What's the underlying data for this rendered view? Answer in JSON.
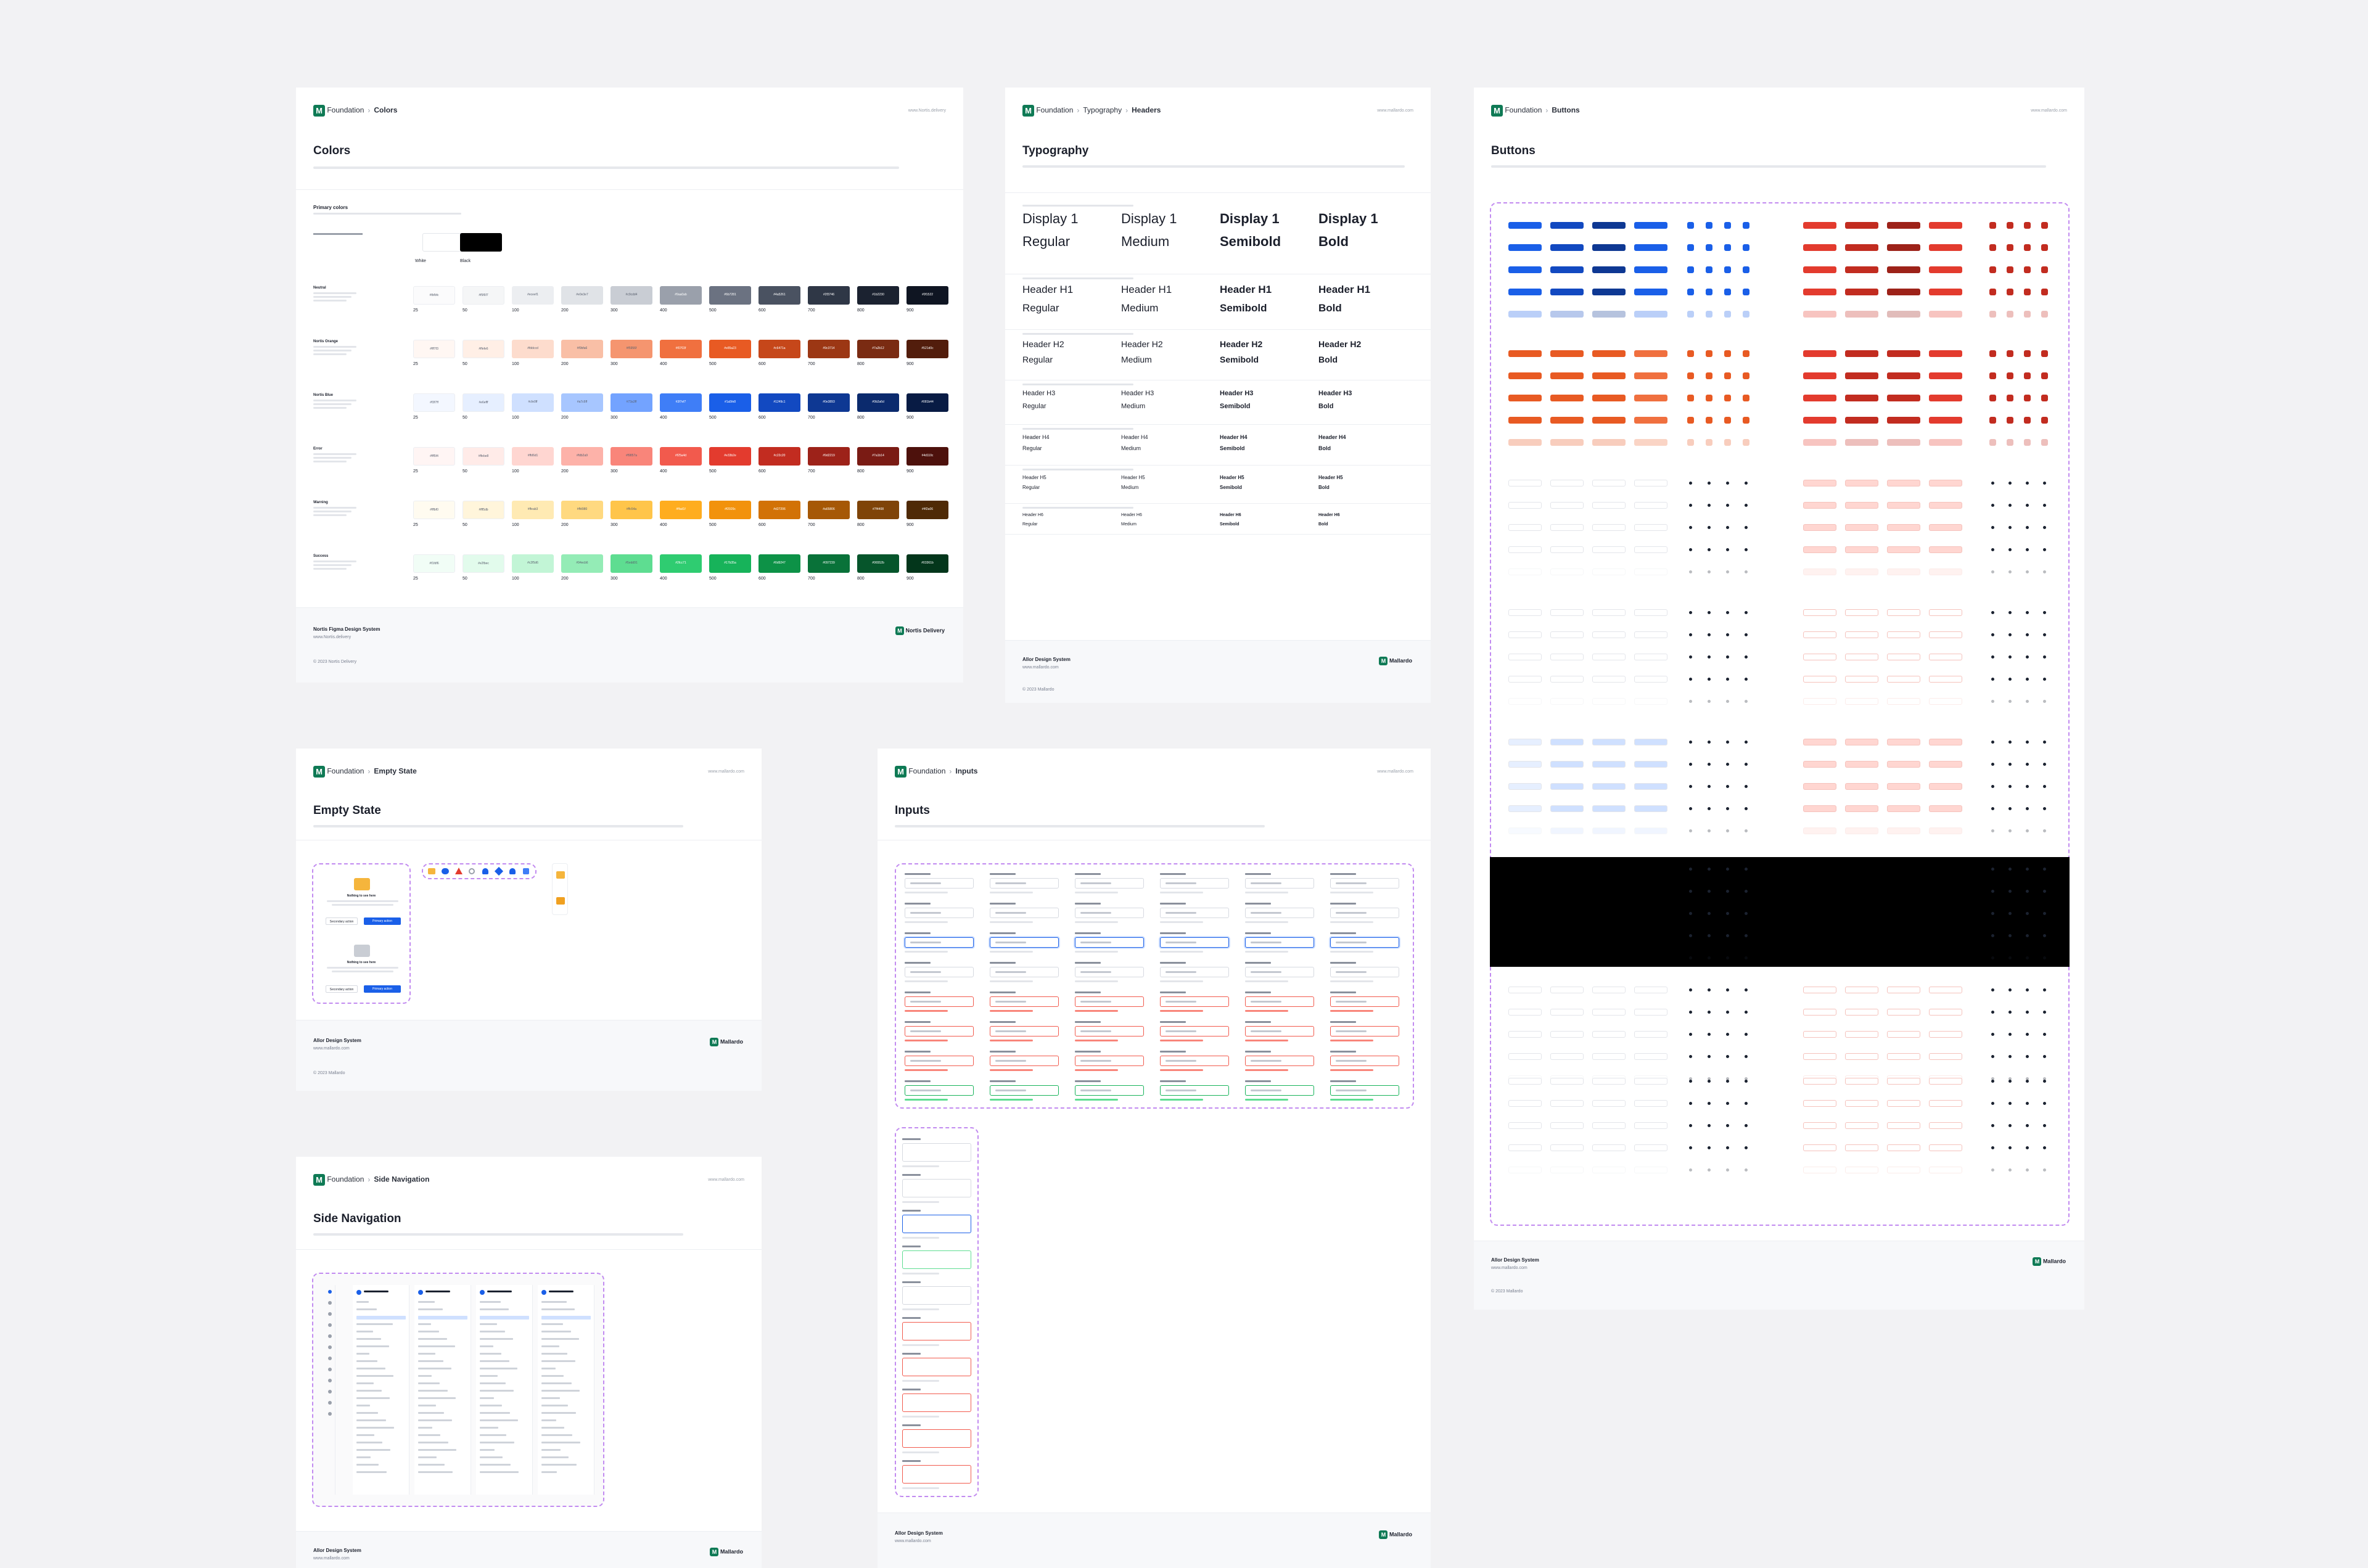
{
  "brand": {
    "logo_letter": "M",
    "accent": "#0f7a55"
  },
  "colors_page": {
    "crumb_root": "Foundation",
    "crumb_current": "Colors",
    "url": "www.Nortis.delivery",
    "title": "Colors",
    "section": "Primary colors",
    "base_swatches": [
      {
        "name": "White",
        "hex": "#FFFFFF"
      },
      {
        "name": "Black",
        "hex": "#000000"
      }
    ],
    "steps": [
      "25",
      "50",
      "100",
      "200",
      "300",
      "400",
      "500",
      "600",
      "700",
      "800",
      "900"
    ],
    "rows": [
      {
        "name": "Neutral",
        "colors": [
          "#fbfbfc",
          "#f5f6f7",
          "#eceef1",
          "#e0e3e7",
          "#c9cdd4",
          "#9aa0ab",
          "#6b7281",
          "#4a5261",
          "#2f3746",
          "#1b2230",
          "#0f1522"
        ]
      },
      {
        "name": "Nortis Orange",
        "colors": [
          "#fff7f3",
          "#ffefe6",
          "#fddccd",
          "#f9bfa6",
          "#f5956f",
          "#f0703f",
          "#e85a23",
          "#c6471a",
          "#9c3714",
          "#7a2b12",
          "#521d0c"
        ]
      },
      {
        "name": "Nortis Blue",
        "colors": [
          "#f3f7ff",
          "#e6efff",
          "#cfe0ff",
          "#a7c6ff",
          "#73a3ff",
          "#3f7ef7",
          "#1a5fe8",
          "#1249c1",
          "#0e3893",
          "#0b2a6d",
          "#081b44"
        ]
      },
      {
        "name": "Error",
        "colors": [
          "#fff5f4",
          "#ffebe8",
          "#ffd6d1",
          "#fdb2a9",
          "#f9857a",
          "#f25a4d",
          "#e33b2e",
          "#c22c20",
          "#9d2219",
          "#7a1b14",
          "#4d110c"
        ]
      },
      {
        "name": "Warning",
        "colors": [
          "#fffbf0",
          "#fff5db",
          "#ffeab3",
          "#ffd980",
          "#ffc54a",
          "#ffad1f",
          "#f2920c",
          "#d27206",
          "#a65806",
          "#7f4408",
          "#4f2a06"
        ]
      },
      {
        "name": "Success",
        "colors": [
          "#f1fdf6",
          "#e2fbec",
          "#c2f5d6",
          "#94ecb6",
          "#5edd91",
          "#2fcc71",
          "#17b35a",
          "#0d9247",
          "#097239",
          "#06552b",
          "#03361b"
        ]
      }
    ],
    "footer_title": "Nortis Figma Design System",
    "footer_sub": "www.Nortis.delivery",
    "footer_copy": "© 2023 Nortis Delivery",
    "footer_brand": "Nortis Delivery"
  },
  "typo_page": {
    "crumb_root": "Foundation",
    "crumb_mid": "Typography",
    "crumb_current": "Headers",
    "url": "www.mallardo.com",
    "title": "Typography",
    "weights": [
      "Regular",
      "Medium",
      "Semibold",
      "Bold"
    ],
    "styles": [
      "Display 1",
      "Header H1",
      "Header H2",
      "Header H3",
      "Header H4",
      "Header H5",
      "Header H6"
    ],
    "footer_title": "Allor Design System",
    "footer_sub": "www.mallardo.com",
    "footer_copy": "© 2023 Mallardo",
    "footer_brand": "Mallardo"
  },
  "buttons_page": {
    "crumb_root": "Foundation",
    "crumb_current": "Buttons",
    "url": "www.mallardo.com",
    "title": "Buttons",
    "footer_title": "Allor Design System",
    "footer_sub": "www.mallardo.com",
    "footer_copy": "© 2023 Mallardo",
    "footer_brand": "Mallardo"
  },
  "empty_page": {
    "crumb_root": "Foundation",
    "crumb_current": "Empty State",
    "url": "www.mallardo.com",
    "title": "Empty State",
    "card_title": "Nothing to see here",
    "secondary_btn": "Secondary action",
    "primary_btn": "Primary action",
    "footer_title": "Allor Design System",
    "footer_sub": "www.mallardo.com",
    "footer_copy": "© 2023 Mallardo",
    "footer_brand": "Mallardo"
  },
  "inputs_page": {
    "crumb_root": "Foundation",
    "crumb_current": "Inputs",
    "url": "www.mallardo.com",
    "title": "Inputs",
    "footer_title": "Allor Design System",
    "footer_sub": "www.mallardo.com",
    "footer_brand": "Mallardo"
  },
  "sidenav_page": {
    "crumb_root": "Foundation",
    "crumb_current": "Side Navigation",
    "url": "www.mallardo.com",
    "title": "Side Navigation",
    "footer_title": "Allor Design System",
    "footer_sub": "www.mallardo.com",
    "footer_brand": "Mallardo"
  }
}
